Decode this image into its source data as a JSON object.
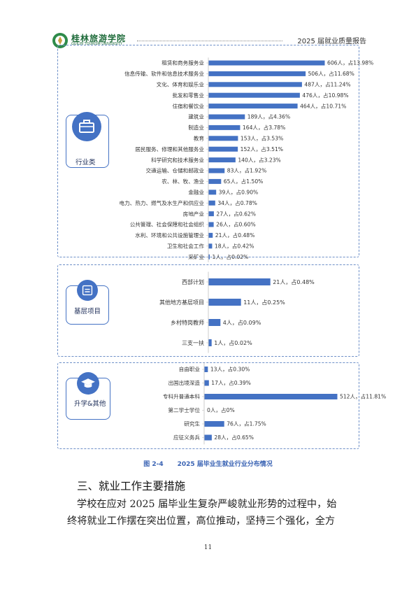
{
  "header": {
    "school_name": "桂林旅游学院",
    "school_name_en": "GUILIN TOURISM UNIVERSITY",
    "report_title": "2025 届就业质量报告"
  },
  "colors": {
    "bar": "#4472c4",
    "frame": "#6d8fc8",
    "caption": "#3b64b4"
  },
  "chart_data": [
    {
      "type": "bar",
      "orientation": "horizontal",
      "group_label": "行业类",
      "group_icon": "briefcase-icon",
      "categories": [
        "租赁和商务服务业",
        "信息传输、软件和信息技术服务业",
        "文化、体育和娱乐业",
        "批发和零售业",
        "住宿和餐饮业",
        "建筑业",
        "制造业",
        "教育",
        "居民服务、修理和其他服务业",
        "科学研究和技术服务业",
        "交通运输、仓储和邮政业",
        "农、林、牧、渔业",
        "金融业",
        "电力、热力、燃气及水生产和供应业",
        "房地产业",
        "公共管理、社会保障和社会组织",
        "水利、环境和公共设施管理业",
        "卫生和社会工作",
        "采矿业"
      ],
      "values": [
        606,
        506,
        487,
        476,
        464,
        189,
        164,
        153,
        152,
        140,
        83,
        65,
        39,
        34,
        27,
        26,
        21,
        18,
        1
      ],
      "data_labels": [
        "606人，占13.98%",
        "506人，占11.68%",
        "487人，占11.24%",
        "476人，占10.98%",
        "464人，占10.71%",
        "189人，占4.36%",
        "164人，占3.78%",
        "153人，占3.53%",
        "152人，占3.51%",
        "140人，占3.23%",
        "83人，占1.92%",
        "65人，占1.50%",
        "39人，占0.90%",
        "34人，占0.78%",
        "27人，占0.62%",
        "26人，占0.60%",
        "21人，占0.48%",
        "18人，占0.42%",
        "1人，占0.02%"
      ]
    },
    {
      "type": "bar",
      "orientation": "horizontal",
      "group_label": "基层项目",
      "group_icon": "id-card-icon",
      "categories": [
        "西部计划",
        "其他地方基层项目",
        "乡村特岗教师",
        "三支一扶"
      ],
      "values": [
        21,
        11,
        4,
        1
      ],
      "data_labels": [
        "21人，占0.48%",
        "11人，占0.25%",
        "4人，占0.09%",
        "1人，占0.02%"
      ]
    },
    {
      "type": "bar",
      "orientation": "horizontal",
      "group_label": "升学&其他",
      "group_icon": "graduation-cap-icon",
      "categories": [
        "自由职业",
        "出国出境深造",
        "专科升普通本科",
        "第二学士学位",
        "研究生",
        "应征义务兵"
      ],
      "values": [
        13,
        17,
        512,
        0,
        76,
        28
      ],
      "data_labels": [
        "13人，占0.30%",
        "17人，占0.39%",
        "512人，占11.81%",
        "0人，占0%",
        "76人，占1.75%",
        "28人，占0.65%"
      ]
    }
  ],
  "caption": {
    "figure_no": "图 2-4",
    "title": "2025 届毕业生就业行业分布情况"
  },
  "section": {
    "heading": "三、就业工作主要措施"
  },
  "paragraph": {
    "line1": "学校在应对 2025 届毕业生复杂严峻就业形势的过程中，始",
    "line2": "终将就业工作摆在突出位置，高位推动，坚持三个强化，全方"
  },
  "page_number": "11"
}
